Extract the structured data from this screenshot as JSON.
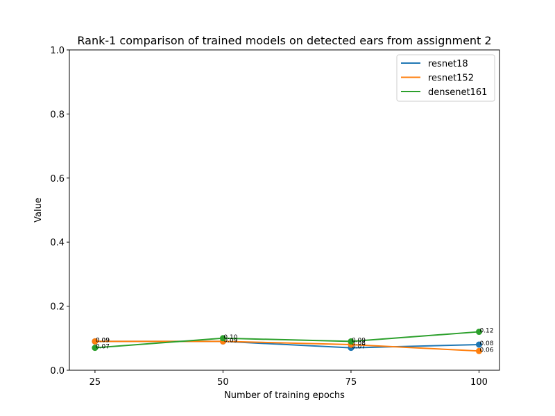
{
  "chart_data": {
    "type": "line",
    "title": "Rank-1 comparison of trained models on detected ears from assignment 2",
    "xlabel": "Number of training epochs",
    "ylabel": "Value",
    "x": [
      25,
      50,
      75,
      100
    ],
    "x_ticks": [
      "25",
      "50",
      "75",
      "100"
    ],
    "y_ticks": [
      "0.0",
      "0.2",
      "0.4",
      "0.6",
      "0.8",
      "1.0"
    ],
    "ylim": [
      0,
      1
    ],
    "xlim": [
      20,
      104
    ],
    "grid": false,
    "legend_position": "top-right",
    "series": [
      {
        "name": "resnet18",
        "color": "#1f77b4",
        "values": [
          0.09,
          0.09,
          0.07,
          0.08
        ],
        "labels": [
          "0.09",
          "0.09",
          "0.07",
          "0.08"
        ]
      },
      {
        "name": "resnet152",
        "color": "#ff7f0e",
        "values": [
          0.09,
          0.09,
          0.08,
          0.06
        ],
        "labels": [
          "0.09",
          "0.09",
          "0.08",
          "0.06"
        ]
      },
      {
        "name": "densenet161",
        "color": "#2ca02c",
        "values": [
          0.07,
          0.1,
          0.09,
          0.12
        ],
        "labels": [
          "0.07",
          "0.10",
          "0.09",
          "0.12"
        ]
      }
    ]
  }
}
